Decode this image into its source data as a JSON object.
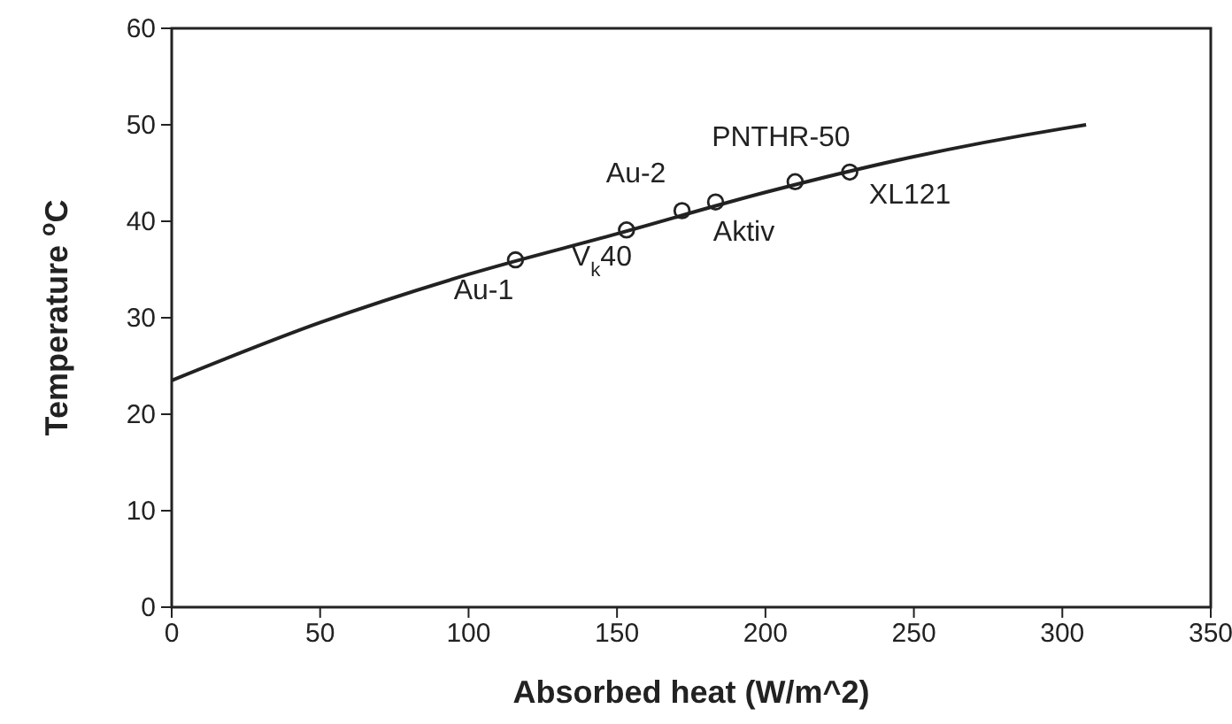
{
  "chart_data": {
    "type": "scatter",
    "xlabel": "Absorbed heat (W/m^2)",
    "ylabel": "Temperature $^{o}$C",
    "xlim": [
      0,
      350
    ],
    "xticks": [
      0,
      50,
      100,
      150,
      200,
      250,
      300,
      350
    ],
    "ylim": [
      0,
      60
    ],
    "yticks": [
      0,
      10,
      20,
      30,
      40,
      50,
      60
    ],
    "grid": false,
    "series": [
      {
        "type": "line",
        "color": "#222222",
        "line_style": "solid",
        "x": [
          0,
          50,
          100,
          150,
          200,
          250,
          300,
          308
        ],
        "values": [
          23.5,
          29.5,
          34.5,
          38.7,
          43.0,
          46.7,
          49.6,
          50
        ]
      },
      {
        "color": "#222222",
        "marker": "circle",
        "x": [
          115.8,
          153.2,
          171.9,
          183.2,
          210,
          228.4
        ],
        "values": [
          36,
          39.1,
          41.1,
          42,
          44.1,
          45.1
        ]
      }
    ],
    "annotations": [
      {
        "text": "Au-1",
        "x": 115.8,
        "y": 36
      },
      {
        "text": "V$_{k}$40",
        "x": 153.2,
        "y": 39.1
      },
      {
        "text": "Au-2",
        "x": 171.9,
        "y": 41.1
      },
      {
        "text": "Aktiv",
        "x": 183.2,
        "y": 42
      },
      {
        "text": "PNTHR-50",
        "x": 210,
        "y": 44.1
      },
      {
        "text": "XL121",
        "x": 228.4,
        "y": 45.1
      }
    ]
  }
}
